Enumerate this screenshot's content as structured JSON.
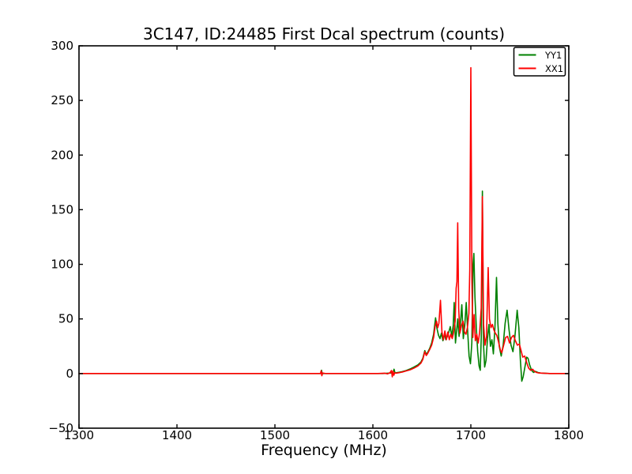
{
  "figure": {
    "background": "#ffffff",
    "axes_color": "#000000"
  },
  "chart_data": {
    "type": "line",
    "title": "3C147, ID:24485 First Dcal spectrum (counts)",
    "xlabel": "Frequency (MHz)",
    "ylabel": "",
    "xlim": [
      1300,
      1800
    ],
    "ylim": [
      -50,
      300
    ],
    "x_ticks": [
      1300,
      1400,
      1500,
      1600,
      1700,
      1800
    ],
    "y_ticks": [
      -50,
      0,
      50,
      100,
      150,
      200,
      250,
      300
    ],
    "grid": false,
    "legend_position": "upper right",
    "legend_labels": [
      "YY1",
      "XX1"
    ],
    "series": [
      {
        "name": "YY1",
        "color": "#008000",
        "points": [
          [
            1300,
            0
          ],
          [
            1340,
            0
          ],
          [
            1380,
            0
          ],
          [
            1420,
            0
          ],
          [
            1460,
            0
          ],
          [
            1500,
            0
          ],
          [
            1540,
            0
          ],
          [
            1547,
            0
          ],
          [
            1547.6,
            3
          ],
          [
            1548.3,
            -0.5
          ],
          [
            1549,
            0
          ],
          [
            1560,
            0
          ],
          [
            1580,
            0
          ],
          [
            1600,
            0
          ],
          [
            1610,
            0
          ],
          [
            1615,
            0.3
          ],
          [
            1618,
            0.5
          ],
          [
            1620.5,
            0.8
          ],
          [
            1621.6,
            4
          ],
          [
            1622.6,
            0.5
          ],
          [
            1624,
            0.8
          ],
          [
            1627,
            1.2
          ],
          [
            1630,
            1.8
          ],
          [
            1634,
            2.8
          ],
          [
            1638,
            4.2
          ],
          [
            1642,
            6
          ],
          [
            1646,
            8
          ],
          [
            1649,
            10.5
          ],
          [
            1651,
            14
          ],
          [
            1653,
            21
          ],
          [
            1654.5,
            17.5
          ],
          [
            1656,
            19.5
          ],
          [
            1658,
            23
          ],
          [
            1660,
            28
          ],
          [
            1662,
            36
          ],
          [
            1664,
            51
          ],
          [
            1665.5,
            41
          ],
          [
            1667,
            35
          ],
          [
            1668.5,
            32
          ],
          [
            1670,
            37
          ],
          [
            1671.5,
            30
          ],
          [
            1673,
            36
          ],
          [
            1674.5,
            31
          ],
          [
            1676,
            34
          ],
          [
            1677.5,
            38
          ],
          [
            1679,
            43
          ],
          [
            1680.5,
            34
          ],
          [
            1682,
            44
          ],
          [
            1683,
            65
          ],
          [
            1684.3,
            28
          ],
          [
            1685.5,
            39
          ],
          [
            1686.6,
            50
          ],
          [
            1688,
            34
          ],
          [
            1689.3,
            45
          ],
          [
            1690.8,
            63
          ],
          [
            1692.3,
            32
          ],
          [
            1693.8,
            44
          ],
          [
            1695.3,
            65
          ],
          [
            1696.8,
            38
          ],
          [
            1698.2,
            16
          ],
          [
            1699.6,
            9
          ],
          [
            1701,
            28
          ],
          [
            1702.3,
            100
          ],
          [
            1703.1,
            110
          ],
          [
            1704.2,
            70
          ],
          [
            1705.6,
            42
          ],
          [
            1707,
            20
          ],
          [
            1708.4,
            7
          ],
          [
            1709.6,
            3
          ],
          [
            1710.8,
            38
          ],
          [
            1711.8,
            167
          ],
          [
            1712.9,
            28
          ],
          [
            1714.1,
            6
          ],
          [
            1715.5,
            12
          ],
          [
            1717,
            32
          ],
          [
            1718.5,
            45
          ],
          [
            1720,
            25
          ],
          [
            1721.5,
            31
          ],
          [
            1723,
            18
          ],
          [
            1724.6,
            42
          ],
          [
            1726.2,
            88
          ],
          [
            1727.6,
            46
          ],
          [
            1729,
            25
          ],
          [
            1731,
            16
          ],
          [
            1733,
            26
          ],
          [
            1735,
            46
          ],
          [
            1737,
            58
          ],
          [
            1739,
            40
          ],
          [
            1741,
            26
          ],
          [
            1743,
            20
          ],
          [
            1745,
            34
          ],
          [
            1747.3,
            58
          ],
          [
            1749,
            42
          ],
          [
            1750.6,
            12
          ],
          [
            1752,
            -7
          ],
          [
            1753.4,
            -3
          ],
          [
            1755,
            5
          ],
          [
            1757,
            15
          ],
          [
            1758.4,
            14
          ],
          [
            1760,
            8
          ],
          [
            1762,
            3
          ],
          [
            1764,
            1
          ],
          [
            1766,
            2
          ],
          [
            1768.5,
            1
          ],
          [
            1771,
            0.5
          ],
          [
            1775,
            0.3
          ],
          [
            1780,
            0
          ],
          [
            1786,
            0
          ],
          [
            1793,
            0
          ],
          [
            1800,
            0
          ]
        ]
      },
      {
        "name": "XX1",
        "color": "#ff0000",
        "points": [
          [
            1300,
            0
          ],
          [
            1330,
            0
          ],
          [
            1360,
            0
          ],
          [
            1390,
            0
          ],
          [
            1420,
            0
          ],
          [
            1450,
            0
          ],
          [
            1480,
            0
          ],
          [
            1510,
            0
          ],
          [
            1540,
            0
          ],
          [
            1546.5,
            0
          ],
          [
            1547.2,
            2.5
          ],
          [
            1547.9,
            -2
          ],
          [
            1548.6,
            0.5
          ],
          [
            1552,
            0
          ],
          [
            1565,
            0
          ],
          [
            1580,
            0
          ],
          [
            1595,
            0
          ],
          [
            1605,
            0
          ],
          [
            1612,
            0.3
          ],
          [
            1615,
            -0.3
          ],
          [
            1617.5,
            0.8
          ],
          [
            1619,
            2.8
          ],
          [
            1619.8,
            -3
          ],
          [
            1620.6,
            2.2
          ],
          [
            1621.4,
            -1.5
          ],
          [
            1622.2,
            0.6
          ],
          [
            1624,
            0.4
          ],
          [
            1627,
            0.8
          ],
          [
            1630,
            1.4
          ],
          [
            1634,
            2.4
          ],
          [
            1638,
            3.4
          ],
          [
            1642,
            5
          ],
          [
            1646,
            7
          ],
          [
            1649,
            9.5
          ],
          [
            1651,
            13
          ],
          [
            1653,
            20
          ],
          [
            1654.5,
            16.5
          ],
          [
            1656,
            18.5
          ],
          [
            1658,
            22
          ],
          [
            1660,
            26
          ],
          [
            1662,
            33
          ],
          [
            1663.5,
            43
          ],
          [
            1665,
            48
          ],
          [
            1666.2,
            42
          ],
          [
            1667.4,
            46
          ],
          [
            1669,
            67
          ],
          [
            1670.5,
            38
          ],
          [
            1672,
            31
          ],
          [
            1673.5,
            39
          ],
          [
            1675,
            31
          ],
          [
            1676.5,
            38
          ],
          [
            1678,
            31
          ],
          [
            1679.5,
            36
          ],
          [
            1681,
            32
          ],
          [
            1682.5,
            38
          ],
          [
            1684,
            48
          ],
          [
            1685,
            78
          ],
          [
            1685.8,
            84
          ],
          [
            1686.6,
            138
          ],
          [
            1687.6,
            60
          ],
          [
            1688.8,
            37
          ],
          [
            1690.5,
            44
          ],
          [
            1692,
            48
          ],
          [
            1693.5,
            38
          ],
          [
            1695,
            36
          ],
          [
            1696.5,
            42
          ],
          [
            1698,
            55
          ],
          [
            1698.9,
            95
          ],
          [
            1700,
            280
          ],
          [
            1701.1,
            85
          ],
          [
            1702,
            33
          ],
          [
            1703.3,
            54
          ],
          [
            1704.6,
            30
          ],
          [
            1706,
            36
          ],
          [
            1707.5,
            28
          ],
          [
            1709,
            38
          ],
          [
            1710.6,
            60
          ],
          [
            1711.8,
            162
          ],
          [
            1713,
            45
          ],
          [
            1714.5,
            26
          ],
          [
            1716,
            34
          ],
          [
            1717.7,
            97
          ],
          [
            1719,
            50
          ],
          [
            1720.5,
            42
          ],
          [
            1722,
            45
          ],
          [
            1723.5,
            40
          ],
          [
            1725,
            37
          ],
          [
            1726.5,
            35
          ],
          [
            1728,
            30
          ],
          [
            1730,
            22
          ],
          [
            1731.5,
            19
          ],
          [
            1733.5,
            26
          ],
          [
            1735.5,
            33
          ],
          [
            1737.5,
            34
          ],
          [
            1739.5,
            28
          ],
          [
            1741.5,
            33
          ],
          [
            1743.5,
            35
          ],
          [
            1745.5,
            30
          ],
          [
            1747.5,
            26
          ],
          [
            1749.5,
            27
          ],
          [
            1751,
            22
          ],
          [
            1753,
            15
          ],
          [
            1755,
            16
          ],
          [
            1757,
            10
          ],
          [
            1759,
            5
          ],
          [
            1761,
            3
          ],
          [
            1763,
            4
          ],
          [
            1765,
            2
          ],
          [
            1767,
            1
          ],
          [
            1769,
            0.6
          ],
          [
            1772,
            0.4
          ],
          [
            1776,
            0.2
          ],
          [
            1781,
            0
          ],
          [
            1788,
            0
          ],
          [
            1794,
            0
          ],
          [
            1800,
            0
          ]
        ]
      }
    ]
  }
}
